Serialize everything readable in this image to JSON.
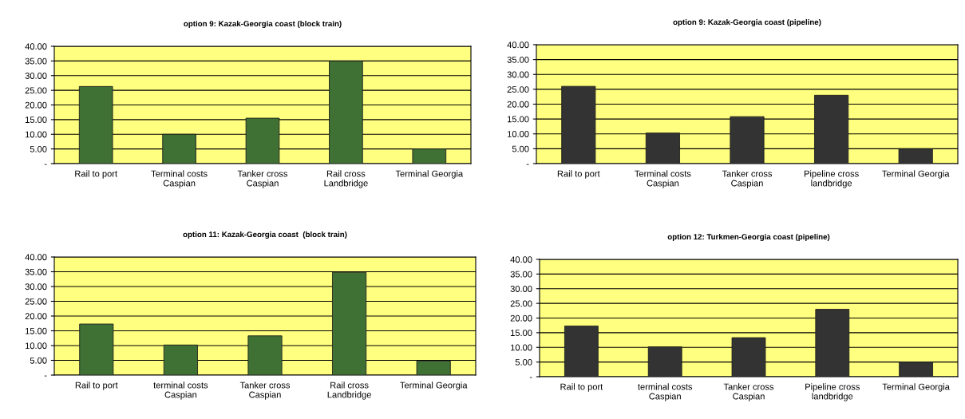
{
  "chart_data": [
    {
      "type": "bar",
      "title": "option 9: Kazak-Georgia coast (block train)",
      "categories": [
        "Rail to port",
        "Terminal costs\nCaspian",
        "Tanker cross\nCaspian",
        "Rail cross\nLandbridge",
        "Terminal Georgia"
      ],
      "values": [
        26.3,
        10,
        15.5,
        35,
        5
      ],
      "color": "#3f7034",
      "ylim": [
        0,
        40
      ],
      "yticks": [
        {
          "value": 0,
          "label": "-"
        },
        {
          "value": 5,
          "label": "5.00"
        },
        {
          "value": 10,
          "label": "10.00"
        },
        {
          "value": 15,
          "label": "15.00"
        },
        {
          "value": 20,
          "label": "20.00"
        },
        {
          "value": 25,
          "label": "25.00"
        },
        {
          "value": 30,
          "label": "30.00"
        },
        {
          "value": 35,
          "label": "35.00"
        },
        {
          "value": 40,
          "label": "40.00"
        }
      ],
      "grid": "y"
    },
    {
      "type": "bar",
      "title": "option 9: Kazak-Georgia coast (pipeline)",
      "categories": [
        "Rail to port",
        "Terminal costs\nCaspian",
        "Tanker cross\nCaspian",
        "Pipeline cross\nlandbridge",
        "Terminal Georgia"
      ],
      "values": [
        26,
        10.3,
        15.8,
        23,
        5
      ],
      "color": "#333333",
      "ylim": [
        0,
        40
      ],
      "yticks": [
        {
          "value": 0,
          "label": "-"
        },
        {
          "value": 5,
          "label": "5.00"
        },
        {
          "value": 10,
          "label": "10.00"
        },
        {
          "value": 15,
          "label": "15.00"
        },
        {
          "value": 20,
          "label": "20.00"
        },
        {
          "value": 25,
          "label": "25.00"
        },
        {
          "value": 30,
          "label": "30.00"
        },
        {
          "value": 35,
          "label": "35.00"
        },
        {
          "value": 40,
          "label": "40.00"
        }
      ],
      "grid": "y"
    },
    {
      "type": "bar",
      "title": "option 11: Kazak-Georgia coast  (block train)",
      "categories": [
        "Rail to port",
        "terminal costs\nCaspian",
        "Tanker cross\nCaspian",
        "Rail cross\nLandbridge",
        "Terminal Georgia"
      ],
      "values": [
        17.3,
        10.2,
        13.3,
        34.8,
        4.8
      ],
      "color": "#3f7034",
      "ylim": [
        0,
        40
      ],
      "yticks": [
        {
          "value": 0,
          "label": "-"
        },
        {
          "value": 5,
          "label": "5.00"
        },
        {
          "value": 10,
          "label": "10.00"
        },
        {
          "value": 15,
          "label": "15.00"
        },
        {
          "value": 20,
          "label": "20.00"
        },
        {
          "value": 25,
          "label": "25.00"
        },
        {
          "value": 30,
          "label": "30.00"
        },
        {
          "value": 35,
          "label": "35.00"
        },
        {
          "value": 40,
          "label": "40.00"
        }
      ],
      "grid": "y"
    },
    {
      "type": "bar",
      "title": "option 12: Turkmen-Georgia coast (pipeline)",
      "categories": [
        "Rail to port",
        "terminal costs\nCaspian",
        "Tanker cross\nCaspian",
        "Pipeline cross\nlandbridge",
        "Terminal Georgia"
      ],
      "values": [
        17.3,
        10.2,
        13.3,
        23,
        5
      ],
      "color": "#333333",
      "ylim": [
        0,
        40
      ],
      "yticks": [
        {
          "value": 0,
          "label": "-"
        },
        {
          "value": 5,
          "label": "5.00"
        },
        {
          "value": 10,
          "label": "10.00"
        },
        {
          "value": 15,
          "label": "15.00"
        },
        {
          "value": 20,
          "label": "20.00"
        },
        {
          "value": 25,
          "label": "25.00"
        },
        {
          "value": 30,
          "label": "30.00"
        },
        {
          "value": 35,
          "label": "35.00"
        },
        {
          "value": 40,
          "label": "40.00"
        }
      ],
      "grid": "y"
    }
  ]
}
